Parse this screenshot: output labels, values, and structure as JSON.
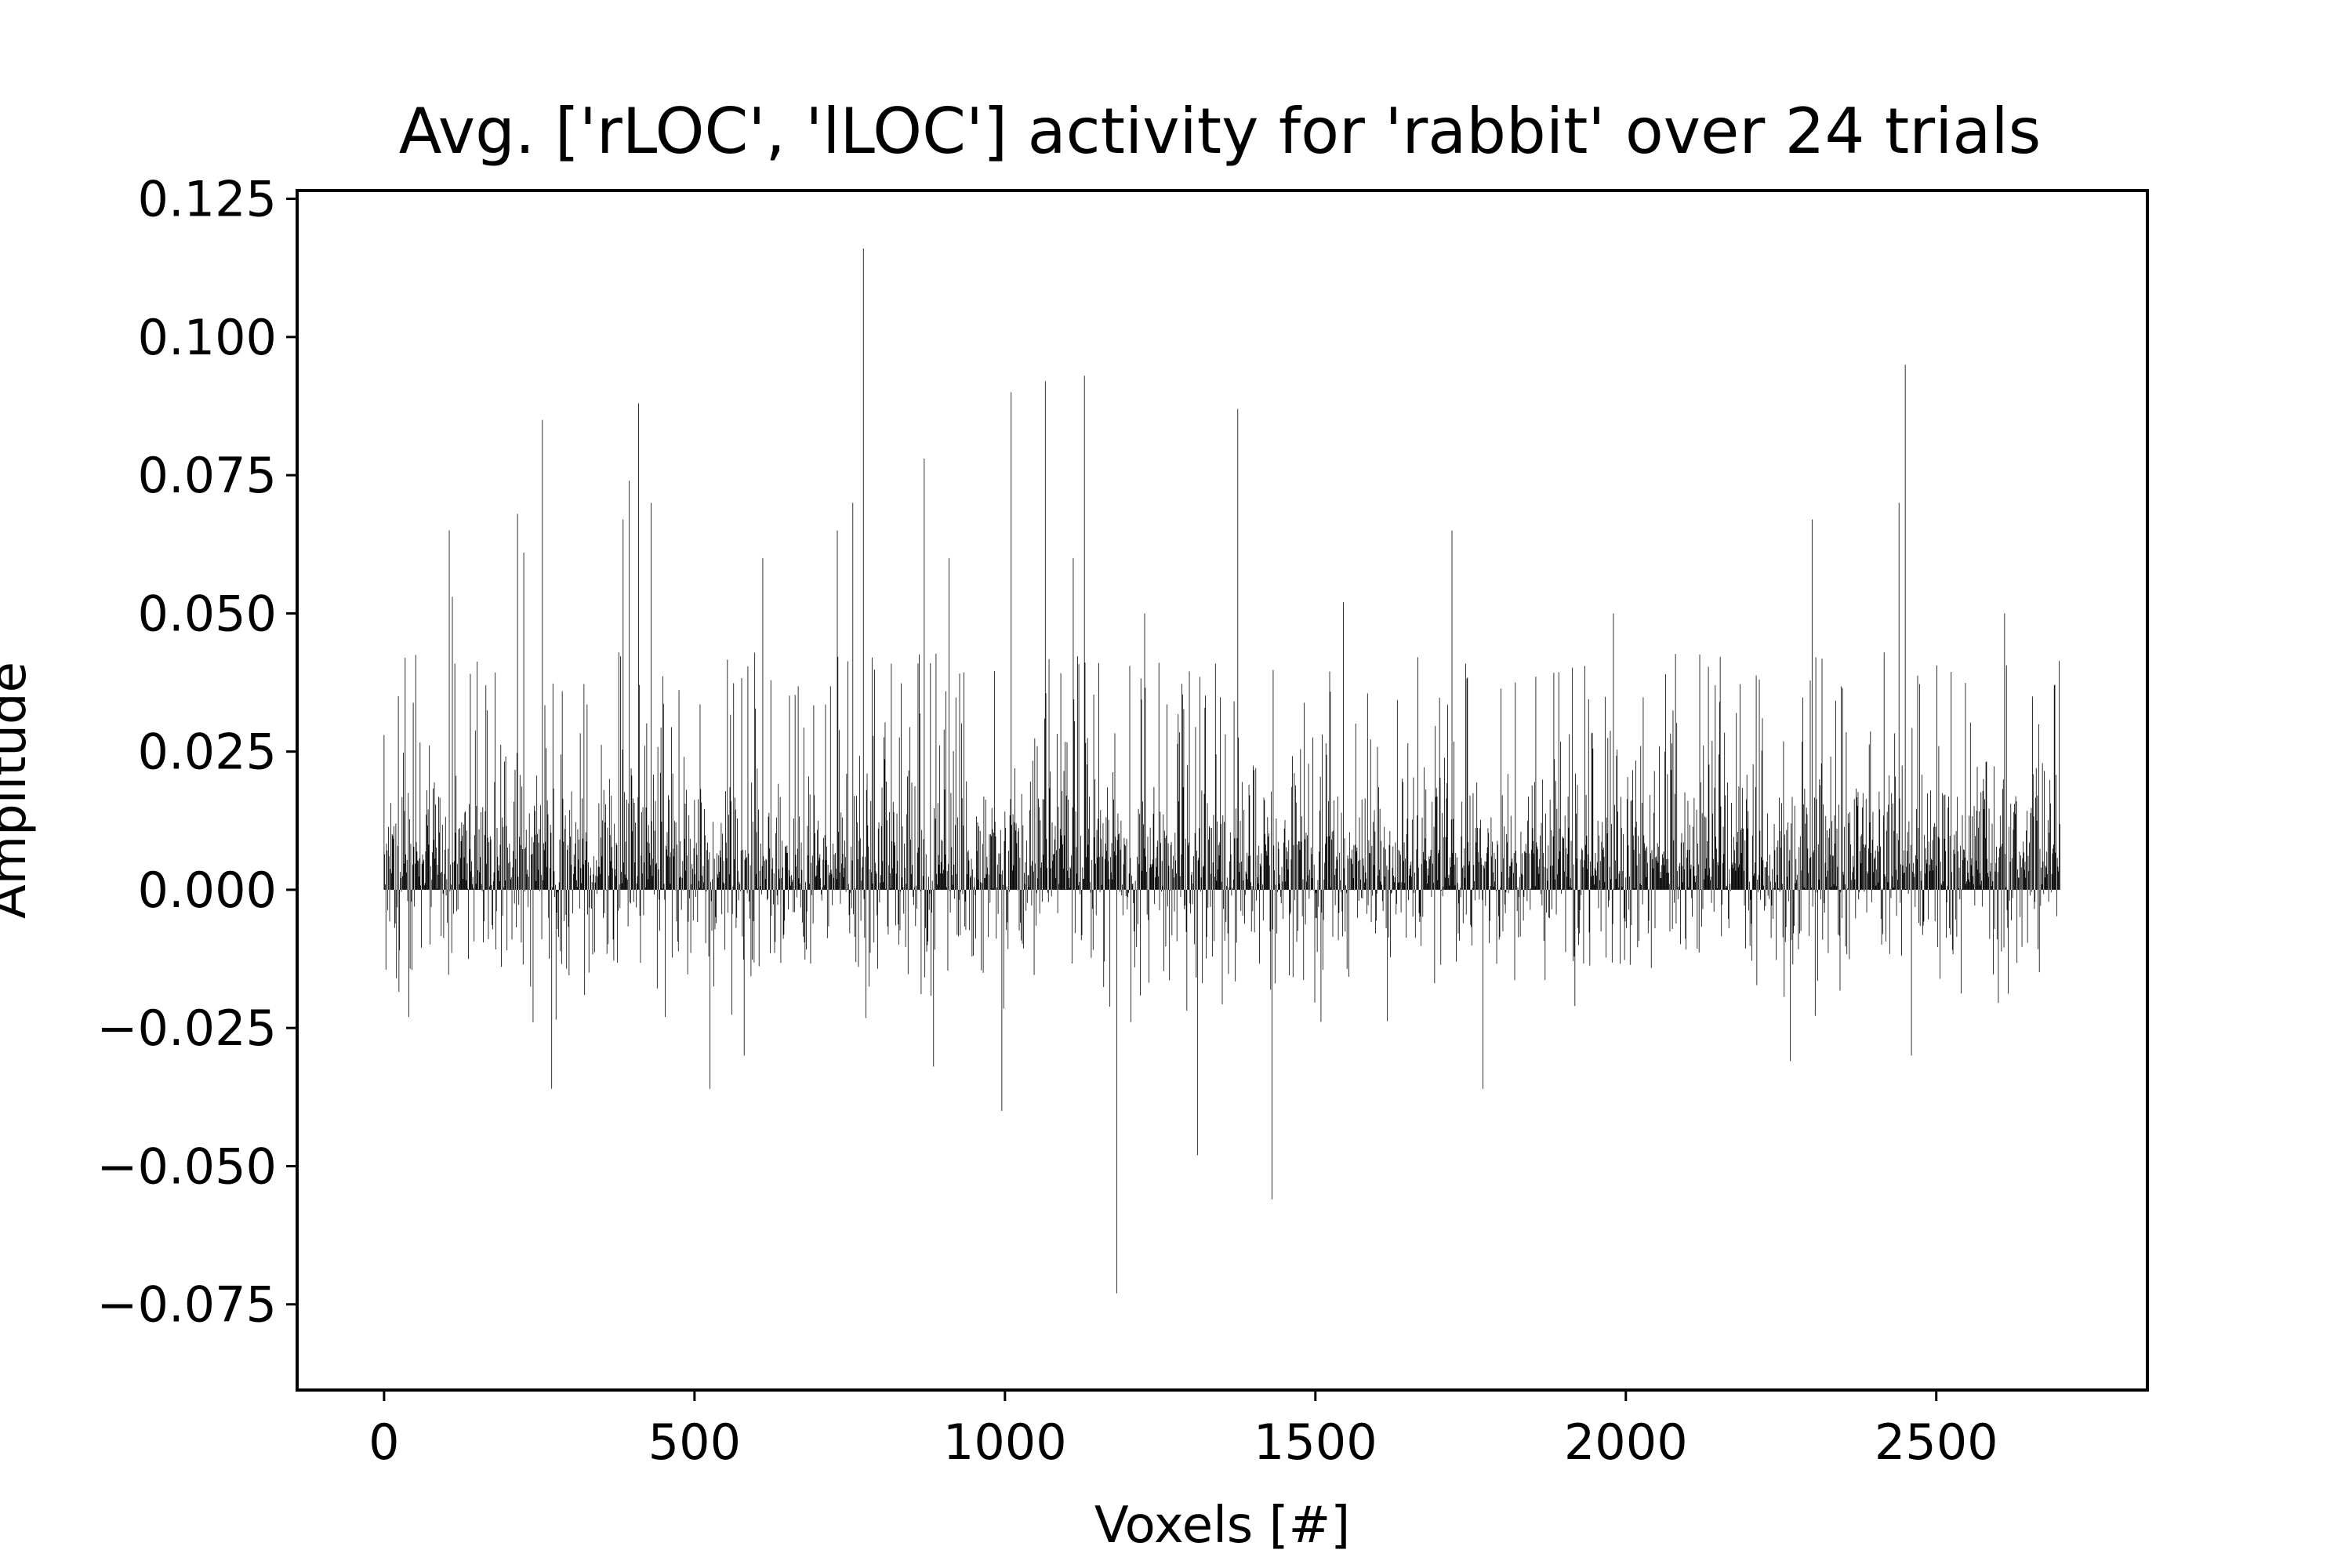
{
  "chart_data": {
    "type": "bar",
    "title": "Avg. ['rLOC', 'lLOC'] activity for 'rabbit' over 24 trials",
    "xlabel": "Voxels [#]",
    "ylabel": "Amplitude",
    "xlim": [
      -140,
      2840
    ],
    "ylim": [
      -0.0905,
      0.1265
    ],
    "x_ticks": [
      0,
      500,
      1000,
      1500,
      2000,
      2500
    ],
    "x_tick_labels": [
      "0",
      "500",
      "1000",
      "1500",
      "2000",
      "2500"
    ],
    "y_ticks": [
      0.125,
      0.1,
      0.075,
      0.05,
      0.025,
      0.0,
      -0.025,
      -0.05,
      -0.075
    ],
    "y_tick_labels": [
      "0.125",
      "0.100",
      "0.075",
      "0.050",
      "0.025",
      "0.000",
      "−0.025",
      "−0.050",
      "−0.075"
    ],
    "grid": false,
    "bar_color": "#000000",
    "n_voxels": 2700,
    "values_note_peaks": [
      [
        0,
        0.028
      ],
      [
        20,
        -0.016
      ],
      [
        40,
        -0.023
      ],
      [
        105,
        0.065
      ],
      [
        110,
        0.053
      ],
      [
        215,
        0.068
      ],
      [
        225,
        0.061
      ],
      [
        240,
        -0.024
      ],
      [
        255,
        0.085
      ],
      [
        270,
        -0.036
      ],
      [
        385,
        0.067
      ],
      [
        395,
        0.074
      ],
      [
        410,
        0.088
      ],
      [
        430,
        0.07
      ],
      [
        525,
        -0.036
      ],
      [
        580,
        -0.03
      ],
      [
        610,
        0.06
      ],
      [
        730,
        0.065
      ],
      [
        755,
        0.07
      ],
      [
        772,
        0.116
      ],
      [
        870,
        0.078
      ],
      [
        885,
        -0.032
      ],
      [
        910,
        0.06
      ],
      [
        995,
        -0.04
      ],
      [
        1010,
        0.09
      ],
      [
        1065,
        0.092
      ],
      [
        1110,
        0.06
      ],
      [
        1128,
        0.093
      ],
      [
        1180,
        -0.073
      ],
      [
        1225,
        0.05
      ],
      [
        1310,
        -0.048
      ],
      [
        1375,
        0.087
      ],
      [
        1430,
        -0.056
      ],
      [
        1545,
        0.052
      ],
      [
        1720,
        0.065
      ],
      [
        1770,
        -0.036
      ],
      [
        1980,
        0.05
      ],
      [
        2265,
        -0.031
      ],
      [
        2300,
        0.067
      ],
      [
        2440,
        0.07
      ],
      [
        2450,
        0.095
      ],
      [
        2460,
        -0.03
      ],
      [
        2610,
        0.05
      ],
      [
        2690,
        0.037
      ]
    ]
  }
}
